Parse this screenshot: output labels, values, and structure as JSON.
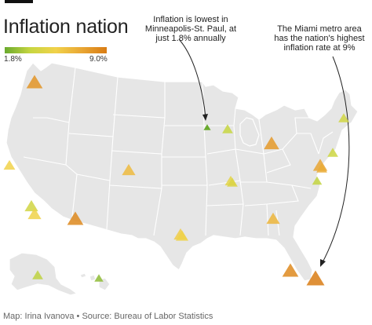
{
  "title": "Inflation nation",
  "legend": {
    "min_label": "1.8%",
    "max_label": "9.0%",
    "min_value": 1.8,
    "max_value": 9.0,
    "color_stops": [
      "#6aaa2e",
      "#c7d641",
      "#f1d24a",
      "#e9a734",
      "#d97c14"
    ]
  },
  "annotations": {
    "lowest": [
      "Inflation is lowest in",
      "Minneapolis-St. Paul, at",
      "just 1.8% annually"
    ],
    "highest": [
      "The Miami metro area",
      "has the nation's highest",
      "inflation rate at 9%"
    ]
  },
  "source": "Map: Irina Ivanova • Source: Bureau of Labor Statistics",
  "metro_markers": [
    {
      "id": "seattle",
      "rate": 8.0
    },
    {
      "id": "san-francisco",
      "rate": 5.4
    },
    {
      "id": "los-angeles-1",
      "rate": 4.0
    },
    {
      "id": "los-angeles-2",
      "rate": 5.3
    },
    {
      "id": "phoenix",
      "rate": 8.5
    },
    {
      "id": "denver",
      "rate": 6.4
    },
    {
      "id": "dallas",
      "rate": 5.6
    },
    {
      "id": "houston",
      "rate": 5.3
    },
    {
      "id": "minneapolis-st-paul",
      "rate": 1.8
    },
    {
      "id": "milwaukee",
      "rate": 3.6
    },
    {
      "id": "chicago",
      "rate": 4.8
    },
    {
      "id": "st-louis",
      "rate": 4.4
    },
    {
      "id": "detroit",
      "rate": 7.8
    },
    {
      "id": "atlanta",
      "rate": 6.6
    },
    {
      "id": "tampa",
      "rate": 8.4
    },
    {
      "id": "miami",
      "rate": 9.0
    },
    {
      "id": "boston",
      "rate": 4.0
    },
    {
      "id": "new-york",
      "rate": 3.8
    },
    {
      "id": "philadelphia",
      "rate": 7.3
    },
    {
      "id": "washington-dc",
      "rate": 3.5
    },
    {
      "id": "baltimore",
      "rate": 7.0
    },
    {
      "id": "anchorage",
      "rate": 3.4
    },
    {
      "id": "honolulu",
      "rate": 2.5
    }
  ]
}
